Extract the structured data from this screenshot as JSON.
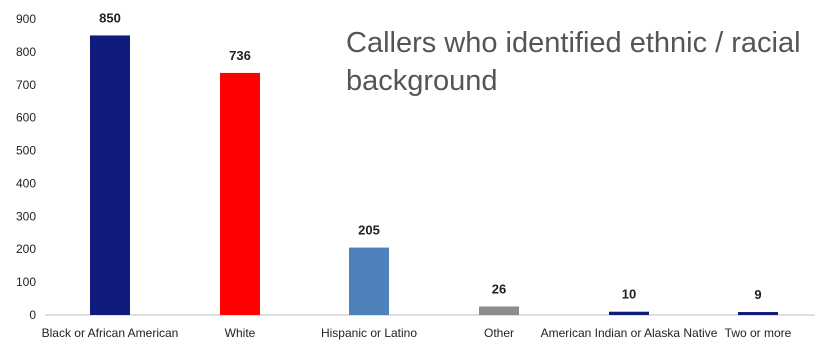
{
  "chart_data": {
    "type": "bar",
    "title": "Callers who identified ethnic / racial background",
    "categories": [
      "Black or African American",
      "White",
      "Hispanic or Latino",
      "Other",
      "American Indian or Alaska Native",
      "Two or more"
    ],
    "values": [
      850,
      736,
      205,
      26,
      10,
      9
    ],
    "colors": [
      "#101a7a",
      "#ff0000",
      "#4f81bd",
      "#8c8c8c",
      "#101a7a",
      "#101a7a"
    ],
    "ylim": [
      0,
      900
    ],
    "yticks": [
      0,
      100,
      200,
      300,
      400,
      500,
      600,
      700,
      800,
      900
    ],
    "xlabel": "",
    "ylabel": "",
    "grid": false,
    "legend": "none"
  }
}
